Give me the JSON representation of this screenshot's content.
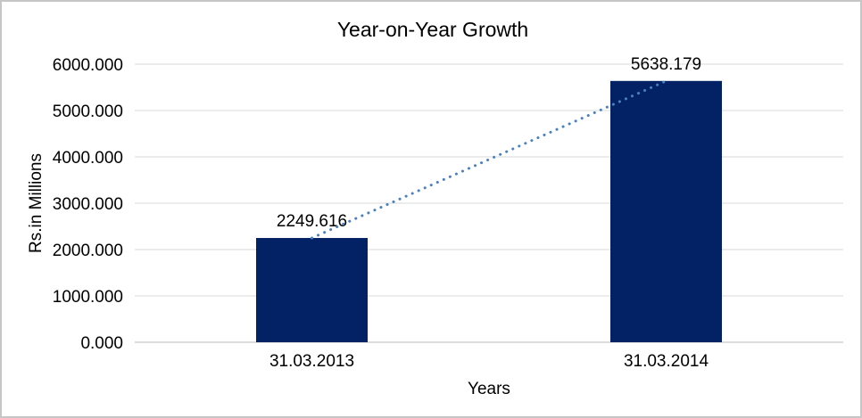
{
  "frame": {
    "background": "#ffffff",
    "border_color": "#c6c6c6"
  },
  "chart_data": {
    "type": "bar",
    "title": "Year-on-Year Growth",
    "xlabel": "Years",
    "ylabel": "Rs.in Millions",
    "categories": [
      "31.03.2013",
      "31.03.2014"
    ],
    "values": [
      2249.616,
      5638.179
    ],
    "data_labels": [
      "2249.616",
      "5638.179"
    ],
    "ylim": [
      0,
      6000
    ],
    "yticks": [
      {
        "value": 0,
        "label": "0.000"
      },
      {
        "value": 1000,
        "label": "1000.000"
      },
      {
        "value": 2000,
        "label": "2000.000"
      },
      {
        "value": 3000,
        "label": "3000.000"
      },
      {
        "value": 4000,
        "label": "4000.000"
      },
      {
        "value": 5000,
        "label": "5000.000"
      },
      {
        "value": 6000,
        "label": "6000.000"
      }
    ],
    "grid": true,
    "legend": "none",
    "bar_color": "#032266",
    "gridline_color": "#d9d9d9",
    "axis_line_color": "#d0d0d0",
    "trendline": {
      "style": "dotted",
      "color": "#4a80c0",
      "from": "31.03.2013",
      "to": "31.03.2014"
    }
  }
}
